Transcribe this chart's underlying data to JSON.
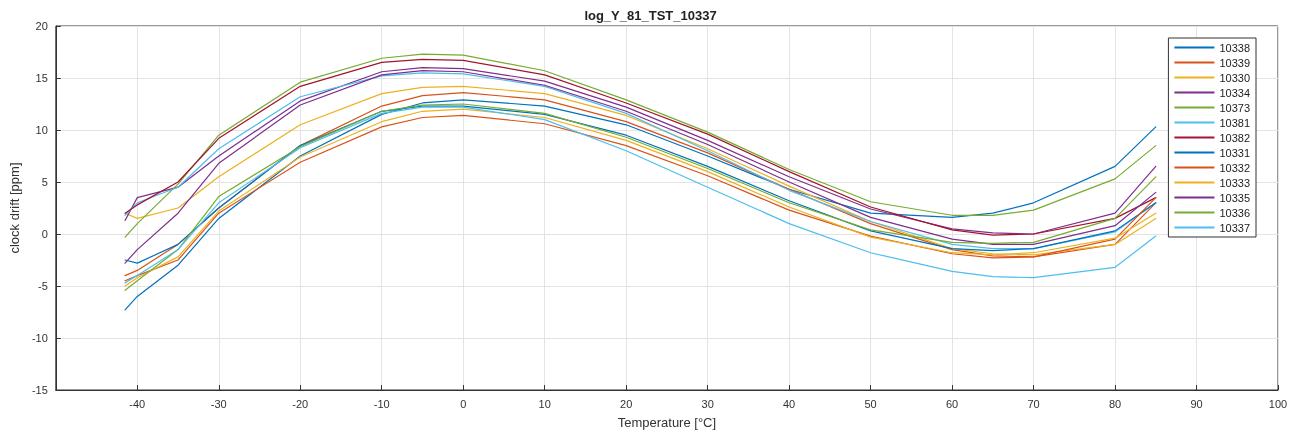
{
  "chart_data": {
    "type": "line",
    "title": "log_Y_81_TST_10337",
    "xlabel": "Temperature [°C]",
    "ylabel": "clock drift [ppm]",
    "x": [
      -41.5,
      -40,
      -35,
      -30,
      -20,
      -10,
      -5,
      0,
      10,
      20,
      30,
      40,
      50,
      60,
      65,
      70,
      80,
      85
    ],
    "xlim": [
      -50,
      100
    ],
    "xticks": [
      -40,
      -30,
      -20,
      -10,
      0,
      10,
      20,
      30,
      40,
      50,
      60,
      70,
      80,
      90,
      100
    ],
    "ylim": [
      -15,
      20
    ],
    "yticks": [
      -15,
      -10,
      -5,
      0,
      5,
      10,
      15,
      20
    ],
    "grid": true,
    "legend": "top right",
    "marker": "none",
    "line_style": "solid",
    "series": [
      {
        "name": "10338",
        "color": "#0072bd",
        "values": [
          -7.3,
          -6,
          -3,
          1.5,
          7.5,
          11.5,
          12.6,
          12.9,
          12.3,
          10.5,
          7.5,
          4.3,
          2.0,
          1.6,
          2.0,
          3.0,
          6.5,
          10.3
        ]
      },
      {
        "name": "10339",
        "color": "#d95319",
        "values": [
          -4,
          -3.5,
          -1,
          2.5,
          8.5,
          12.3,
          13.3,
          13.6,
          12.9,
          10.8,
          7.8,
          4.3,
          1.0,
          -1.5,
          -2.1,
          -2.2,
          -1.0,
          3.0
        ]
      },
      {
        "name": "10330",
        "color": "#edb120",
        "values": [
          2,
          1.5,
          2.5,
          5.5,
          10.5,
          13.5,
          14.1,
          14.2,
          13.5,
          11.4,
          8.2,
          4.6,
          1.2,
          -1.4,
          -1.9,
          -2.0,
          -1.0,
          1.5
        ]
      },
      {
        "name": "10334",
        "color": "#7e2f8e",
        "values": [
          1.3,
          3.5,
          4.5,
          7.5,
          12.8,
          15.6,
          16.0,
          15.9,
          14.7,
          12.2,
          9.0,
          5.5,
          2.4,
          0.5,
          0.1,
          0.0,
          2.0,
          6.5
        ]
      },
      {
        "name": "10373",
        "color": "#77ac30",
        "values": [
          -0.3,
          1.0,
          4.8,
          9.5,
          14.6,
          16.9,
          17.3,
          17.2,
          15.7,
          12.9,
          9.8,
          6.2,
          3.1,
          1.8,
          1.8,
          2.3,
          5.3,
          8.5
        ]
      },
      {
        "name": "10381",
        "color": "#4dbeee",
        "values": [
          1.8,
          3.0,
          4.5,
          8.2,
          13.2,
          15.2,
          15.5,
          15.4,
          14.2,
          11.6,
          8.0,
          4.2,
          1.2,
          -1.0,
          -1.4,
          -1.4,
          0.2,
          3.0
        ]
      },
      {
        "name": "10382",
        "color": "#a2142f",
        "values": [
          2.0,
          2.8,
          5.0,
          9.2,
          14.2,
          16.5,
          16.8,
          16.7,
          15.3,
          12.6,
          9.6,
          6.0,
          2.6,
          0.4,
          -0.1,
          0.0,
          1.5,
          3.5
        ]
      },
      {
        "name": "10331",
        "color": "#0072bd",
        "values": [
          -2.5,
          -2.8,
          -1.0,
          2.5,
          8.5,
          11.8,
          12.3,
          12.3,
          11.5,
          9.5,
          6.5,
          3.2,
          0.3,
          -1.4,
          -1.6,
          -1.4,
          0.3,
          3.0
        ]
      },
      {
        "name": "10332",
        "color": "#d95319",
        "values": [
          -4.5,
          -4,
          -2.5,
          2.0,
          6.9,
          10.3,
          11.2,
          11.4,
          10.6,
          8.5,
          5.6,
          2.3,
          -0.2,
          -1.9,
          -2.3,
          -2.2,
          -0.5,
          3.5
        ]
      },
      {
        "name": "10333",
        "color": "#edb120",
        "values": [
          -5,
          -4.2,
          -2.2,
          2.2,
          7.4,
          10.8,
          11.8,
          12.0,
          11.2,
          9.0,
          6.0,
          2.6,
          -0.3,
          -1.8,
          -2.0,
          -1.8,
          -0.4,
          2.0
        ]
      },
      {
        "name": "10335",
        "color": "#7e2f8e",
        "values": [
          -2.8,
          -1.5,
          2.0,
          6.8,
          12.4,
          15.3,
          15.7,
          15.6,
          14.3,
          11.8,
          8.6,
          5.0,
          1.6,
          -0.5,
          -1.0,
          -1.0,
          0.8,
          4.0
        ]
      },
      {
        "name": "10336",
        "color": "#77ac30",
        "values": [
          -5.4,
          -4.5,
          -1.5,
          3.6,
          8.4,
          11.8,
          12.4,
          12.5,
          11.6,
          9.3,
          6.3,
          3.0,
          0.4,
          -0.8,
          -0.9,
          -0.8,
          1.5,
          5.5
        ]
      },
      {
        "name": "10337",
        "color": "#4dbeee",
        "values": [
          -4.7,
          -4.0,
          -1.5,
          3.0,
          8.3,
          11.6,
          12.2,
          12.2,
          11.0,
          8.0,
          4.5,
          1.0,
          -1.8,
          -3.6,
          -4.1,
          -4.2,
          -3.2,
          -0.2
        ]
      }
    ]
  }
}
